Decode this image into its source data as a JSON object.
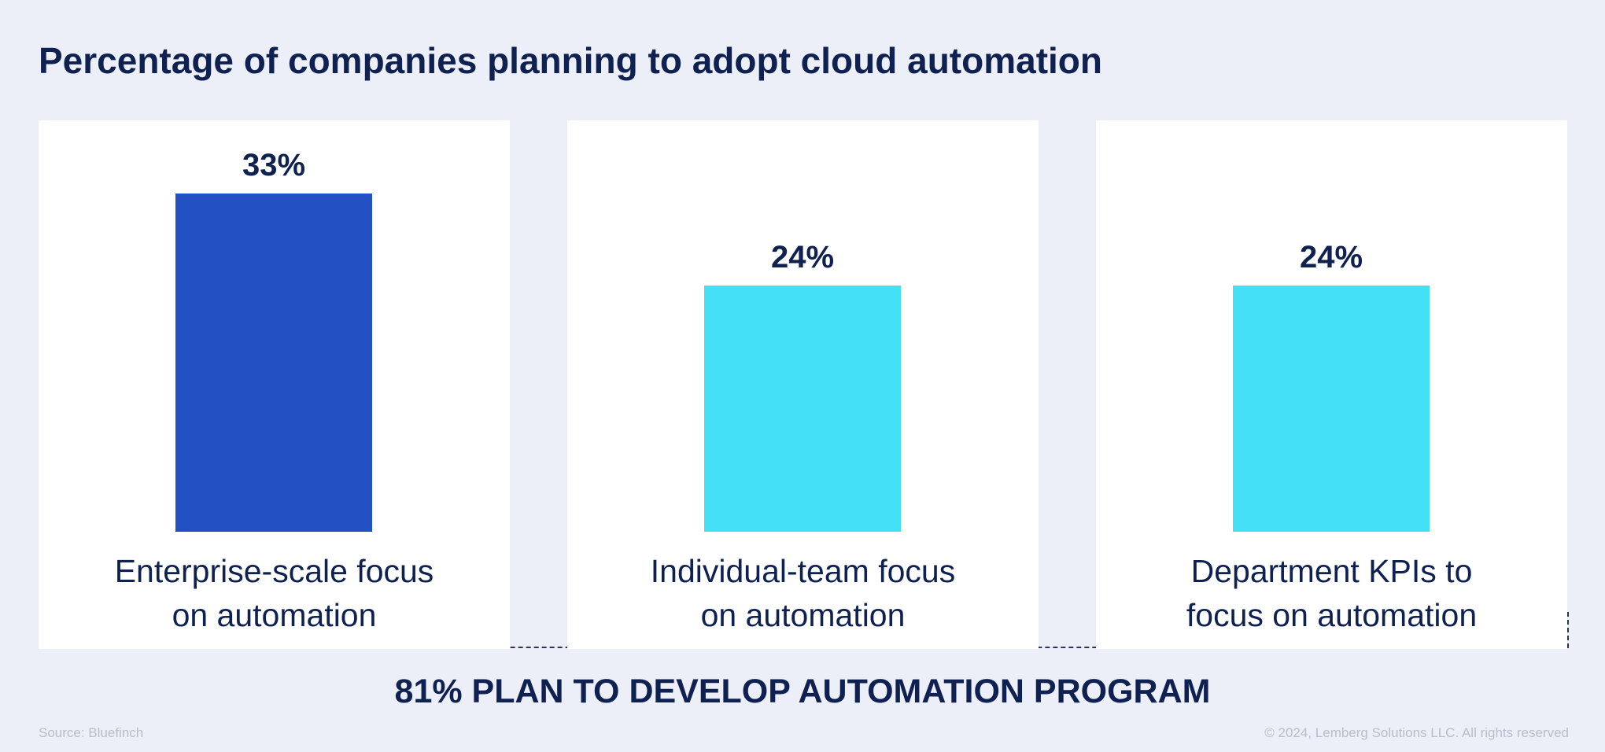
{
  "title": "Percentage of companies planning to adopt cloud automation",
  "chart_data": {
    "type": "bar",
    "categories": [
      "Enterprise-scale focus\non automation",
      "Individual-team focus\non automation",
      "Department KPIs to\nfocus on automation"
    ],
    "values": [
      33,
      24,
      24
    ],
    "value_labels": [
      "33%",
      "24%",
      "24%"
    ],
    "colors": [
      "#2350c2",
      "#44e0f8",
      "#44e0f8"
    ],
    "ylim": [
      0,
      33
    ],
    "grid": false
  },
  "summary": "81% PLAN TO DEVELOP AUTOMATION PROGRAM",
  "source": "Source: Bluefinch",
  "copyright": "© 2024, Lemberg Solutions LLC. All rights reserved"
}
